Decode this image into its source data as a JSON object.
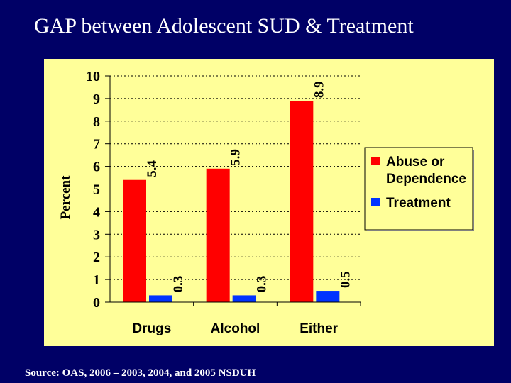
{
  "slide": {
    "title": "GAP between Adolescent SUD & Treatment",
    "source": "Source: OAS, 2006 – 2003, 2004, and 2005 NSDUH"
  },
  "chart_data": {
    "type": "bar",
    "title": "",
    "xlabel": "",
    "ylabel": "Percent",
    "ylim": [
      0,
      10
    ],
    "yticks": [
      0,
      1,
      2,
      3,
      4,
      5,
      6,
      7,
      8,
      9,
      10
    ],
    "grid": "horizontal dotted",
    "legend_position": "right",
    "categories": [
      "Drugs",
      "Alcohol",
      "Either"
    ],
    "series": [
      {
        "name": "Abuse or Dependence",
        "legend_lines": [
          "Abuse or",
          "Dependence"
        ],
        "color": "#ff0000",
        "values": [
          5.4,
          5.9,
          8.9
        ]
      },
      {
        "name": "Treatment",
        "legend_lines": [
          "Treatment"
        ],
        "color": "#0033ff",
        "values": [
          0.3,
          0.3,
          0.5
        ]
      }
    ],
    "data_labels": [
      [
        "5.4",
        "5.9",
        "8.9"
      ],
      [
        "0.3",
        "0.3",
        "0.5"
      ]
    ]
  }
}
